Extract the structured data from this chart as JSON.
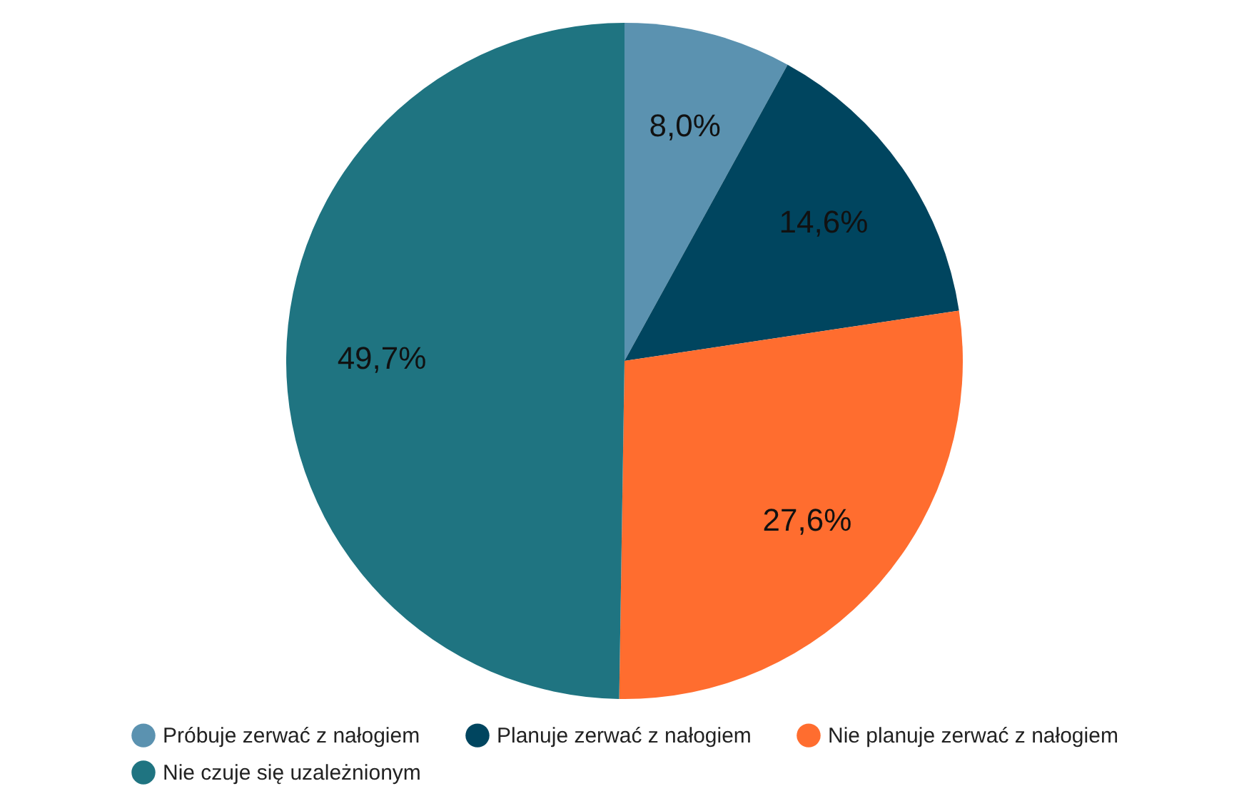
{
  "chart_data": {
    "type": "pie",
    "categories": [
      "Próbuje zerwać z nałogiem",
      "Planuje zerwać z nałogiem",
      "Nie planuje zerwać z nałogiem",
      "Nie czuje się uzależnionym"
    ],
    "values": [
      8.0,
      14.6,
      27.6,
      49.7
    ],
    "colors": [
      "#5b92b0",
      "#00455f",
      "#ff6d2f",
      "#1f7481"
    ],
    "value_labels": [
      "8,0%",
      "14,6%",
      "27,6%",
      "49,7%"
    ],
    "legend": "bottom"
  }
}
